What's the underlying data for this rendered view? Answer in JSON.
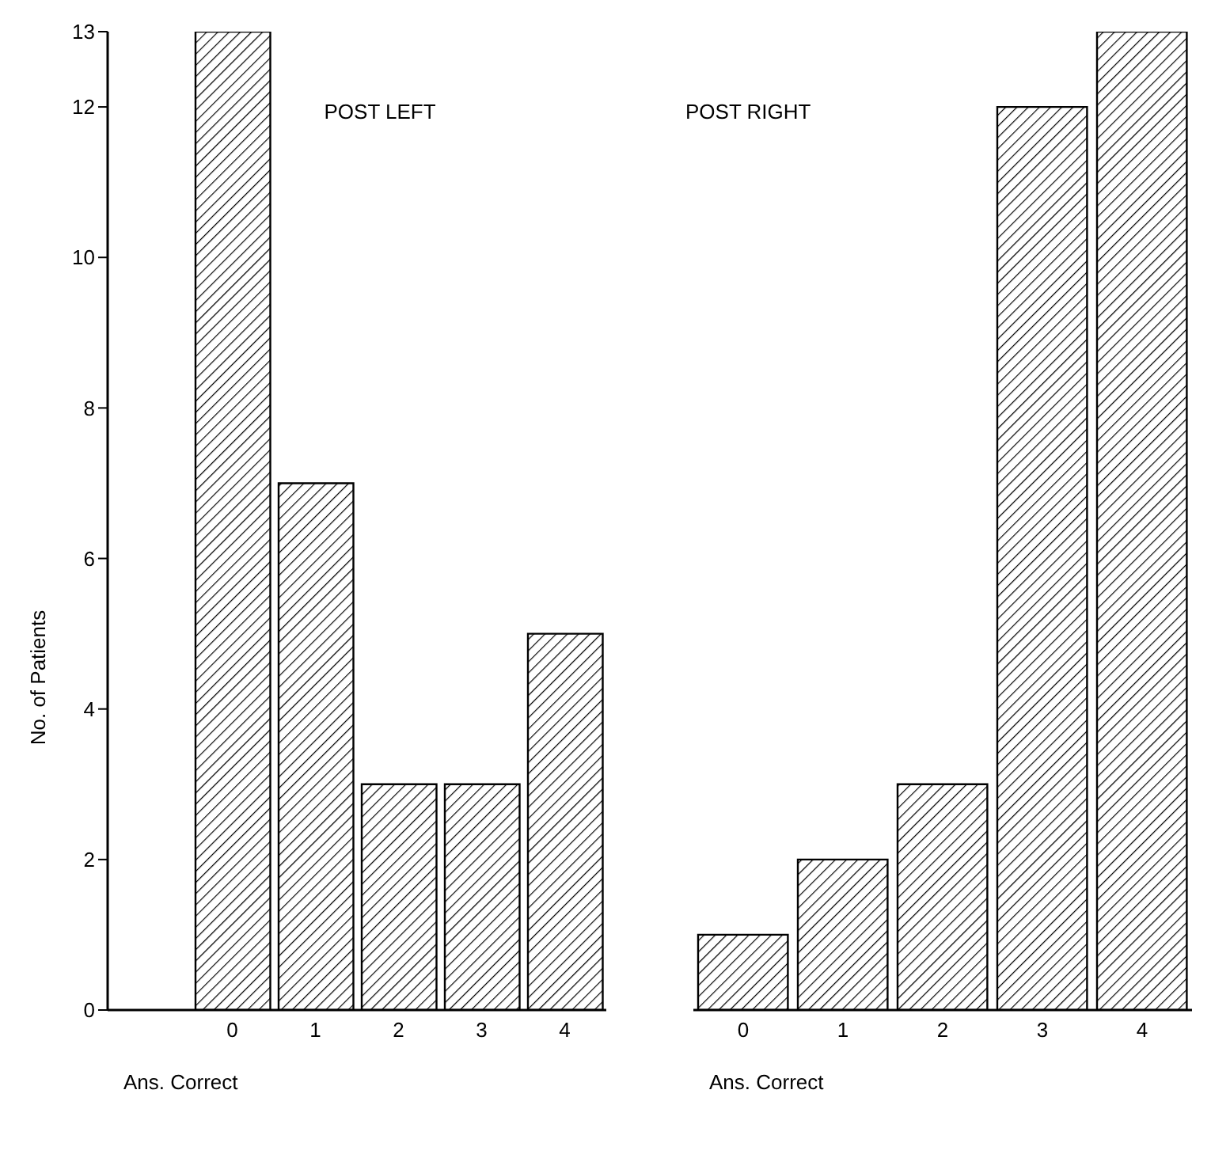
{
  "chart_data": [
    {
      "type": "bar",
      "title": "POST LEFT",
      "xlabel": "Ans. Correct",
      "ylabel": "No. of Patients",
      "x": [
        0,
        1,
        2,
        3,
        4
      ],
      "values": [
        13,
        7,
        3,
        3,
        5
      ],
      "color": "#000000",
      "xlim": [
        -1.5,
        4.5
      ],
      "xticks": [
        0,
        1,
        2,
        3,
        4
      ],
      "ylim": [
        0,
        13
      ],
      "yticks": [
        0,
        2,
        4,
        6,
        8,
        10,
        12,
        13
      ],
      "grid": false,
      "legend": false
    },
    {
      "type": "bar",
      "title": "POST RIGHT",
      "xlabel": "Ans. Correct",
      "x": [
        0,
        1,
        2,
        3,
        4
      ],
      "values": [
        1,
        2,
        3,
        12,
        13
      ],
      "color": "#000000",
      "xlim": [
        -0.5,
        4.5
      ],
      "xticks": [
        0,
        1,
        2,
        3,
        4
      ],
      "ylim": [
        0,
        13
      ],
      "yticks": [
        0,
        2,
        4,
        6,
        8,
        10,
        12,
        13
      ],
      "grid": false,
      "legend": false,
      "tick_labels": "x"
    }
  ]
}
